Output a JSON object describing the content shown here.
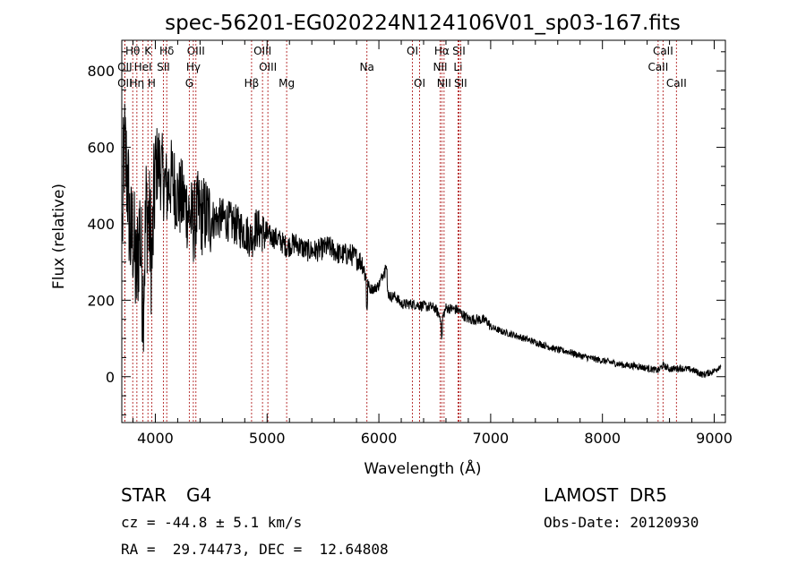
{
  "chart_data": {
    "type": "line",
    "title": "spec-56201-EG020224N124106V01_sp03-167.fits",
    "xlabel": "Wavelength (Å)",
    "ylabel": "Flux (relative)",
    "xlim": [
      3700,
      9100
    ],
    "ylim": [
      -120,
      880
    ],
    "x_ticks": [
      4000,
      5000,
      6000,
      7000,
      8000,
      9000
    ],
    "y_ticks": [
      0,
      200,
      400,
      600,
      800
    ],
    "grid": false,
    "line_color": "#000000",
    "marker_color": "#b22222",
    "spectrum_envelope": {
      "x": [
        3700,
        3720,
        3750,
        3780,
        3800,
        3830,
        3860,
        3890,
        3920,
        3950,
        3970,
        4000,
        4030,
        4060,
        4100,
        4150,
        4200,
        4250,
        4300,
        4340,
        4380,
        4430,
        4480,
        4530,
        4600,
        4700,
        4800,
        4861,
        4900,
        5000,
        5100,
        5175,
        5250,
        5350,
        5450,
        5550,
        5650,
        5750,
        5850,
        5893,
        5920,
        5960,
        6000,
        6050,
        6080,
        6100,
        6150,
        6200,
        6300,
        6400,
        6500,
        6563,
        6600,
        6700,
        6800,
        6900,
        6970,
        7000,
        7100,
        7200,
        7300,
        7400,
        7500,
        7600,
        7700,
        7800,
        7900,
        8000,
        8100,
        8200,
        8300,
        8400,
        8500,
        8542,
        8600,
        8700,
        8800,
        8900,
        9000,
        9060
      ],
      "y": [
        300,
        600,
        520,
        350,
        380,
        250,
        400,
        200,
        450,
        380,
        300,
        550,
        560,
        530,
        490,
        520,
        470,
        460,
        430,
        400,
        430,
        420,
        420,
        410,
        415,
        400,
        380,
        360,
        390,
        370,
        360,
        340,
        350,
        330,
        330,
        340,
        320,
        320,
        300,
        250,
        230,
        230,
        240,
        280,
        220,
        210,
        210,
        190,
        190,
        185,
        180,
        150,
        180,
        175,
        150,
        150,
        145,
        130,
        118,
        110,
        100,
        90,
        80,
        70,
        65,
        55,
        48,
        42,
        36,
        30,
        28,
        22,
        16,
        30,
        20,
        22,
        18,
        5,
        15,
        30
      ]
    },
    "line_markers": [
      {
        "name": "Hθ",
        "x": 3798,
        "row": 1
      },
      {
        "name": "K",
        "x": 3934,
        "row": 1
      },
      {
        "name": "Hδ",
        "x": 4102,
        "row": 1
      },
      {
        "name": "OIII",
        "x": 4363,
        "row": 1
      },
      {
        "name": "OIII",
        "x": 4959,
        "row": 1
      },
      {
        "name": "OI",
        "x": 6300,
        "row": 1
      },
      {
        "name": "Hα",
        "x": 6563,
        "row": 1
      },
      {
        "name": "SII",
        "x": 6716,
        "row": 1
      },
      {
        "name": "CaII",
        "x": 8542,
        "row": 1
      },
      {
        "name": "OII",
        "x": 3727,
        "row": 2
      },
      {
        "name": "HeI",
        "x": 3889,
        "row": 2
      },
      {
        "name": "SII",
        "x": 4072,
        "row": 2
      },
      {
        "name": "Hγ",
        "x": 4340,
        "row": 2
      },
      {
        "name": "OIII",
        "x": 5007,
        "row": 2
      },
      {
        "name": "Na",
        "x": 5893,
        "row": 2
      },
      {
        "name": "NII",
        "x": 6548,
        "row": 2
      },
      {
        "name": "Li",
        "x": 6708,
        "row": 2
      },
      {
        "name": "CaII",
        "x": 8498,
        "row": 2
      },
      {
        "name": "OII",
        "x": 3727,
        "row": 3
      },
      {
        "name": "Hη",
        "x": 3835,
        "row": 3
      },
      {
        "name": "H",
        "x": 3968,
        "row": 3
      },
      {
        "name": "G",
        "x": 4304,
        "row": 3
      },
      {
        "name": "Hβ",
        "x": 4861,
        "row": 3
      },
      {
        "name": "Mg",
        "x": 5175,
        "row": 3
      },
      {
        "name": "OI",
        "x": 6364,
        "row": 3
      },
      {
        "name": "NII",
        "x": 6583,
        "row": 3
      },
      {
        "name": "SII",
        "x": 6731,
        "row": 3
      },
      {
        "name": "CaII",
        "x": 8662,
        "row": 3
      }
    ]
  },
  "info": {
    "object_class": "STAR",
    "subclass": "G4",
    "survey": "LAMOST  DR5",
    "cz_text": "cz = -44.8 ± 5.1 km/s",
    "obs_date_text": "Obs-Date: 20120930",
    "coords_text": "RA =  29.74473, DEC =  12.64808"
  }
}
